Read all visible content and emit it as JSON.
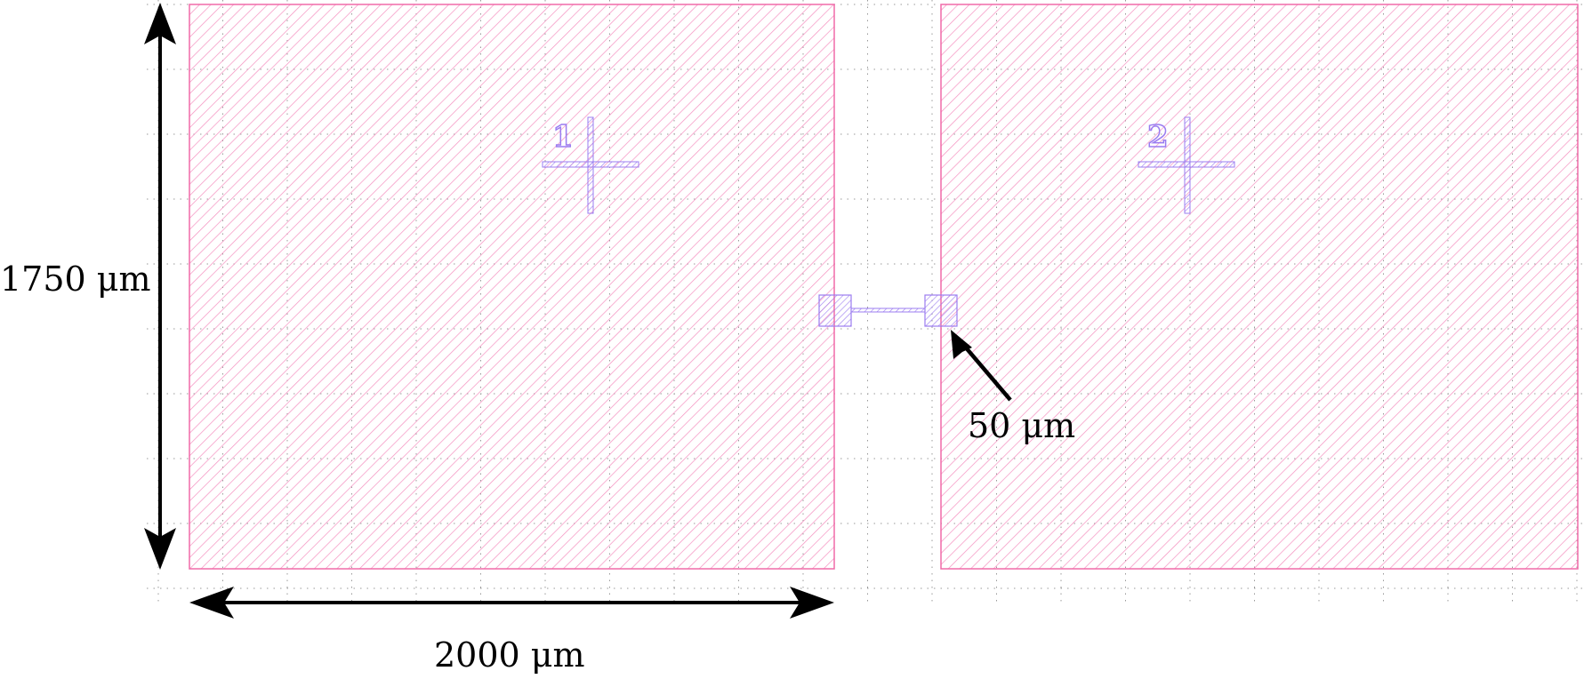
{
  "labels": {
    "height_dim": "1750 μm",
    "width_dim": "2000 μm",
    "gap_dim": "50 μm",
    "marker_left": "1",
    "marker_right": "2"
  },
  "colors": {
    "pad_stroke": "#f06aa8",
    "pad_hatch": "#f590c0",
    "marker": "#9b7cf0",
    "grid": "#888888",
    "arrow": "#000000"
  }
}
